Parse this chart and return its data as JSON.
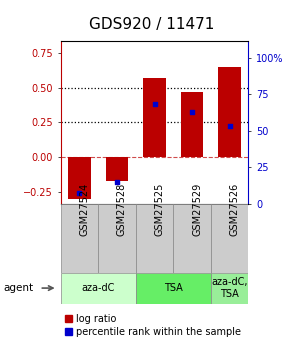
{
  "title": "GDS920 / 11471",
  "categories": [
    "GSM27524",
    "GSM27528",
    "GSM27525",
    "GSM27529",
    "GSM27526"
  ],
  "bar_values": [
    -0.3,
    -0.17,
    0.57,
    0.47,
    0.65
  ],
  "blue_values": [
    0.07,
    0.15,
    0.68,
    0.63,
    0.53
  ],
  "bar_color": "#bb0000",
  "blue_color": "#0000cc",
  "ylim_left": [
    -0.3333,
    0.8333
  ],
  "ylim_right": [
    0.0,
    1.1111
  ],
  "yticks_left": [
    -0.25,
    0.0,
    0.25,
    0.5,
    0.75
  ],
  "yticks_right_vals": [
    0.0,
    0.25,
    0.5,
    0.75,
    1.0
  ],
  "yticks_right_labels": [
    "0",
    "25",
    "50",
    "75",
    "100%"
  ],
  "groups": [
    {
      "label": "aza-dC",
      "start": 0,
      "end": 2,
      "color": "#ccffcc"
    },
    {
      "label": "TSA",
      "start": 2,
      "end": 4,
      "color": "#66ee66"
    },
    {
      "label": "aza-dC,\nTSA",
      "start": 4,
      "end": 5,
      "color": "#99ee99"
    }
  ],
  "agent_label": "agent",
  "legend_red": "log ratio",
  "legend_blue": "percentile rank within the sample",
  "bar_width": 0.6,
  "title_fontsize": 11,
  "tick_fontsize": 7,
  "group_fontsize": 7,
  "legend_fontsize": 7,
  "sample_box_color": "#cccccc",
  "sample_box_edge": "#888888"
}
